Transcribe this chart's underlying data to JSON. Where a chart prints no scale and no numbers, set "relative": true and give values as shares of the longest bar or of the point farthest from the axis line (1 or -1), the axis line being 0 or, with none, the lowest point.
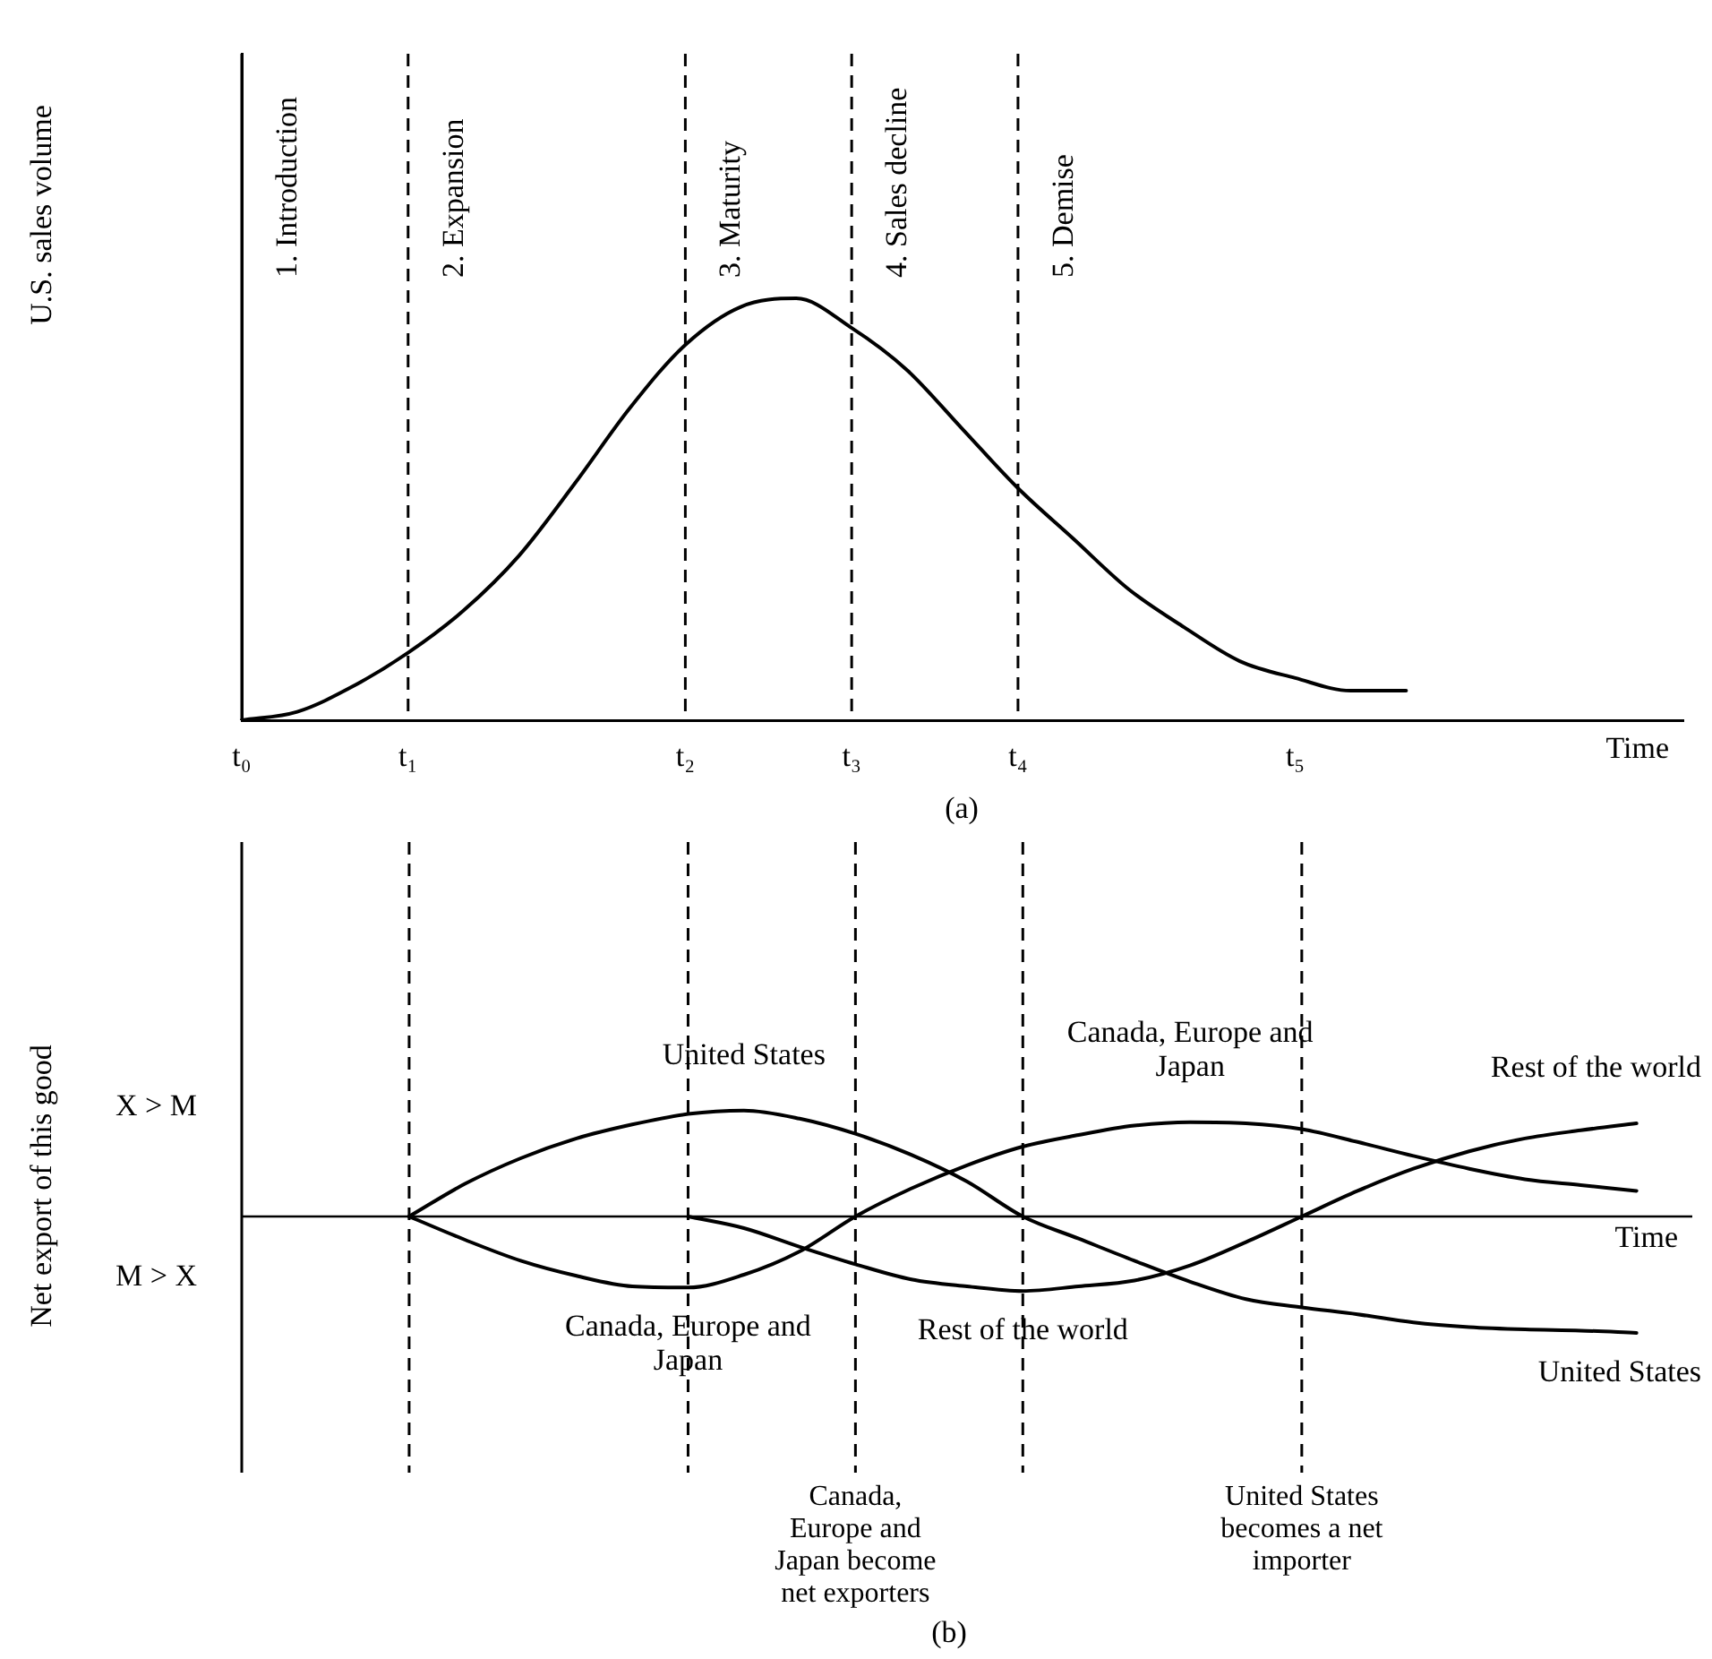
{
  "chart_data": [
    {
      "type": "line",
      "ylabel": "U.S. sales volume",
      "xlabel": "Time",
      "relative": true,
      "marker": "none",
      "tick_labels": "x",
      "color": "#000000",
      "categories": [
        "t₀",
        null,
        null,
        "t₁",
        null,
        null,
        null,
        null,
        "t₂",
        null,
        null,
        "t₃",
        null,
        null,
        "t₄",
        null,
        null,
        null,
        null,
        "t₅",
        null,
        null,
        null,
        null,
        null,
        null,
        null
      ],
      "values": [
        0,
        0.02,
        0.08,
        0.16,
        0.26,
        0.39,
        0.56,
        0.74,
        0.89,
        0.98,
        1,
        0.93,
        0.83,
        0.69,
        0.55,
        0.43,
        0.31,
        0.22,
        0.14,
        0.1,
        0.07,
        0.07,
        null,
        null,
        null,
        null,
        null
      ],
      "ref_lines": [
        {
          "axis": "x",
          "value": "t₀",
          "line_style": "solid",
          "label": "1. Introduction"
        },
        {
          "axis": "x",
          "value": "t₁",
          "line_style": "dashed",
          "label": "2. Expansion"
        },
        {
          "axis": "x",
          "value": "t₂",
          "line_style": "dashed",
          "label": "3. Maturity"
        },
        {
          "axis": "x",
          "value": "t₃",
          "line_style": "dashed",
          "label": "4. Sales decline"
        },
        {
          "axis": "x",
          "value": "t₄",
          "line_style": "dashed",
          "label": "5. Demise"
        }
      ],
      "annotations": [
        "(a)"
      ]
    },
    {
      "type": "line",
      "ylabel": "Net export of this good",
      "xlabel": "Time",
      "relative": true,
      "marker": "none",
      "tick_labels": false,
      "categories": [
        "t₀",
        null,
        null,
        "t₁",
        null,
        null,
        null,
        null,
        "t₂",
        null,
        null,
        "t₃",
        null,
        null,
        "t₄",
        null,
        null,
        null,
        null,
        "t₅",
        null,
        null,
        null,
        null,
        null,
        null,
        null
      ],
      "series": [
        {
          "name": "United States",
          "color": "#000000",
          "values": [
            null,
            null,
            null,
            0,
            0.28,
            0.5,
            0.67,
            0.79,
            0.88,
            0.91,
            0.84,
            0.71,
            0.53,
            0.3,
            0,
            -0.19,
            -0.38,
            -0.56,
            -0.71,
            -0.78,
            -0.84,
            -0.91,
            -0.95,
            -0.97,
            -0.98,
            -1,
            null
          ]
        },
        {
          "name": "Canada, Europe and Japan",
          "color": "#000000",
          "values": [
            null,
            null,
            null,
            0,
            -0.2,
            -0.38,
            -0.51,
            -0.6,
            -0.61,
            -0.5,
            -0.3,
            0,
            0.24,
            0.44,
            0.6,
            0.7,
            0.78,
            0.81,
            0.8,
            0.75,
            0.64,
            0.52,
            0.41,
            0.32,
            0.27,
            0.22,
            null
          ]
        },
        {
          "name": "Rest of the world",
          "color": "#000000",
          "values": [
            null,
            null,
            null,
            null,
            null,
            null,
            null,
            null,
            0,
            -0.1,
            -0.26,
            -0.41,
            -0.54,
            -0.6,
            -0.64,
            -0.6,
            -0.55,
            -0.42,
            -0.22,
            0,
            0.22,
            0.41,
            0.56,
            0.67,
            0.74,
            0.8,
            null
          ]
        }
      ],
      "ref_lines": [
        {
          "axis": "x",
          "value": "t₀",
          "line_style": "solid"
        },
        {
          "axis": "x",
          "value": "t₁",
          "line_style": "dashed"
        },
        {
          "axis": "x",
          "value": "t₂",
          "line_style": "dashed"
        },
        {
          "axis": "x",
          "value": "t₃",
          "line_style": "dashed",
          "label": "Canada, Europe and Japan become net exporters"
        },
        {
          "axis": "x",
          "value": "t₄",
          "line_style": "dashed"
        },
        {
          "axis": "x",
          "value": "t₅",
          "line_style": "dashed",
          "label": "United States becomes a net importer"
        }
      ],
      "annotations": [
        "X > M",
        "M > X",
        "(b)"
      ]
    }
  ]
}
